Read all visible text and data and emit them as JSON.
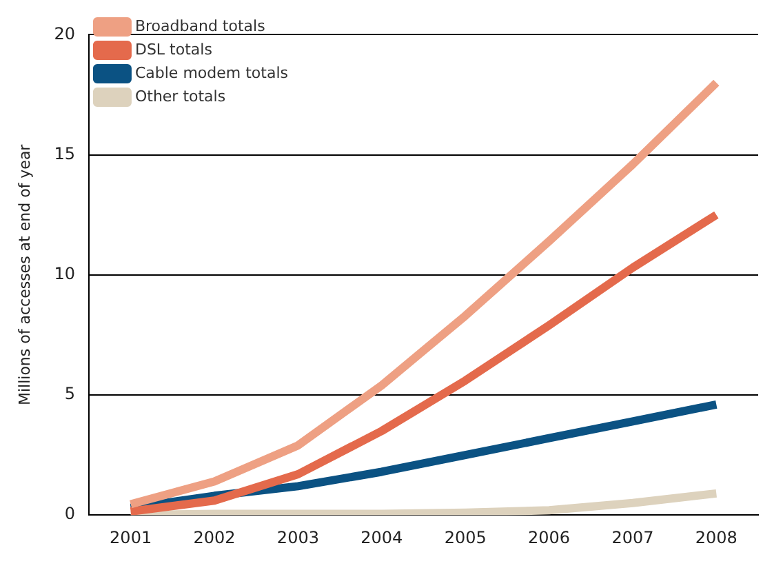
{
  "chart_data": {
    "type": "line",
    "ylabel": "Millions of accesses at end of year",
    "categories": [
      "2001",
      "2002",
      "2003",
      "2004",
      "2005",
      "2006",
      "2007",
      "2008"
    ],
    "series": [
      {
        "name": "Broadband totals",
        "color": "#eea083",
        "values": [
          0.45,
          1.4,
          2.9,
          5.4,
          8.3,
          11.4,
          14.6,
          18.0
        ]
      },
      {
        "name": "DSL totals",
        "color": "#e46a4c",
        "values": [
          0.15,
          0.6,
          1.7,
          3.5,
          5.6,
          7.9,
          10.3,
          12.5
        ]
      },
      {
        "name": "Cable modem totals",
        "color": "#0b5283",
        "values": [
          0.3,
          0.8,
          1.2,
          1.8,
          2.5,
          3.2,
          3.9,
          4.6
        ]
      },
      {
        "name": "Other totals",
        "color": "#ddd2bd",
        "values": [
          0,
          0.05,
          0.05,
          0.05,
          0.1,
          0.2,
          0.5,
          0.9
        ]
      }
    ],
    "ylim": [
      0,
      20
    ],
    "yticks": [
      0,
      5,
      10,
      15,
      20
    ],
    "grid": "y",
    "legend": "top left",
    "marker": "none",
    "line_style": "solid"
  }
}
